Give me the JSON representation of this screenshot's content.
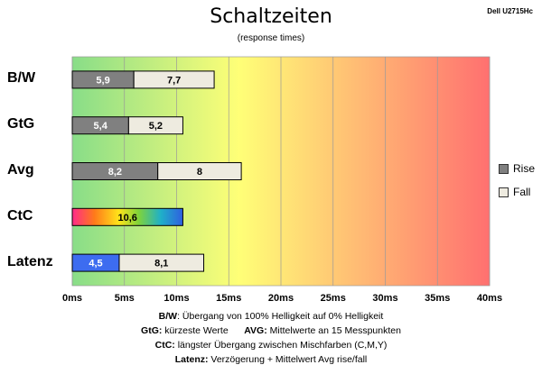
{
  "chart_data": {
    "type": "bar",
    "orientation": "horizontal",
    "stacked": true,
    "title": "Schaltzeiten",
    "subtitle": "(response times)",
    "device": "Dell U2715Hc",
    "categories": [
      "B/W",
      "GtG",
      "Avg",
      "CtC",
      "Latenz"
    ],
    "series": [
      {
        "name": "Rise",
        "values": [
          5.9,
          5.4,
          8.2,
          null,
          null
        ],
        "color": "#808080"
      },
      {
        "name": "Fall",
        "values": [
          7.7,
          5.2,
          8,
          null,
          8.1
        ],
        "color": "#eeebe0"
      }
    ],
    "ctc": {
      "value": 10.6,
      "label": "10,6"
    },
    "latenz": {
      "value": 4.5,
      "label": "4,5",
      "color": "#3d6cf0"
    },
    "bar_labels": {
      "rise": [
        "5,9",
        "5,4",
        "8,2",
        "",
        ""
      ],
      "fall": [
        "7,7",
        "5,2",
        "8",
        "",
        "8,1"
      ]
    },
    "xaxis": {
      "min": 0,
      "max": 40,
      "ticks": [
        "0ms",
        "5ms",
        "10ms",
        "15ms",
        "20ms",
        "25ms",
        "30ms",
        "35ms",
        "40ms"
      ]
    },
    "legend": [
      "Rise",
      "Fall"
    ],
    "legend_position": "right",
    "background_gradient": [
      "#88dd88",
      "#ffff77",
      "#ff7070"
    ]
  },
  "notes": {
    "line1": {
      "k": "B/W",
      "t": ":  Übergang von 100% Helligkeit auf 0% Helligkeit"
    },
    "line2a": {
      "k": "GtG:",
      "t": " kürzeste  Werte"
    },
    "line2b": {
      "k": "AVG:",
      "t": " Mittelwerte  an 15 Messpunkten"
    },
    "line3": {
      "k": "CtC:",
      "t": " längster Übergang  zwischen Mischfarben (C,M,Y)"
    },
    "line4": {
      "k": "Latenz:",
      "t": " Verzögerung  + Mittelwert  Avg rise/fall"
    }
  }
}
